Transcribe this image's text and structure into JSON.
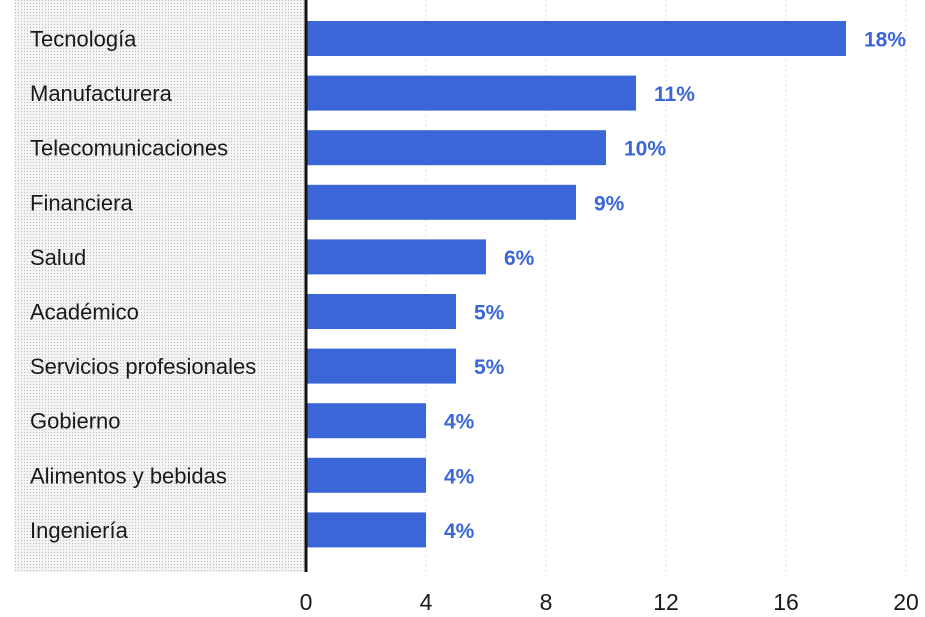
{
  "chart_data": {
    "type": "bar",
    "orientation": "horizontal",
    "categories": [
      "Tecnología",
      "Manufacturera",
      "Telecomunicaciones",
      "Financiera",
      "Salud",
      "Académico",
      "Servicios profesionales",
      "Gobierno",
      "Alimentos y bebidas",
      "Ingeniería"
    ],
    "values": [
      18,
      11,
      10,
      9,
      6,
      5,
      5,
      4,
      4,
      4
    ],
    "value_labels": [
      "18%",
      "11%",
      "10%",
      "9%",
      "6%",
      "5%",
      "5%",
      "4%",
      "4%",
      "4%"
    ],
    "xticks": [
      "0",
      "4",
      "8",
      "12",
      "16",
      "20"
    ],
    "xlim": [
      0,
      20
    ],
    "title": "",
    "xlabel": "",
    "ylabel": "",
    "grid": "vertical-dotted",
    "legend": "none",
    "colors": {
      "bar": "#3a66d8",
      "label": "#3a66d8",
      "axis": "#111111",
      "panel": "#e4e4e4"
    }
  }
}
